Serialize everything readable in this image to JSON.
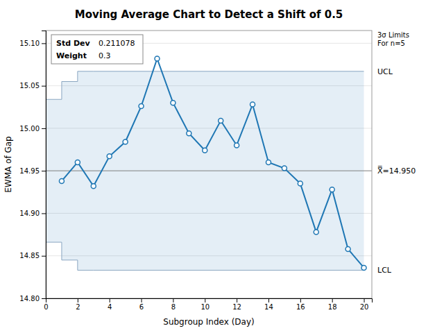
{
  "chart_data": {
    "type": "line",
    "title": "Moving Average Chart to Detect a Shift of 0.5",
    "xlabel": "Subgroup Index (Day)",
    "ylabel": "EWMA of Gap",
    "x": [
      1,
      2,
      3,
      4,
      5,
      6,
      7,
      8,
      9,
      10,
      11,
      12,
      13,
      14,
      15,
      16,
      17,
      18,
      19,
      20
    ],
    "series": [
      {
        "marker": "circle",
        "values": [
          14.938,
          14.96,
          14.932,
          14.967,
          14.984,
          15.026,
          15.082,
          15.03,
          14.994,
          14.974,
          15.009,
          14.98,
          15.028,
          14.96,
          14.953,
          14.935,
          14.878,
          14.928,
          14.858,
          14.836
        ]
      }
    ],
    "limits": [
      {
        "label": "UCL",
        "x": [
          0,
          1,
          2,
          3,
          20
        ],
        "values": [
          15.034,
          15.055,
          15.067,
          15.067,
          15.067
        ]
      },
      {
        "label": "LCL",
        "x": [
          0,
          1,
          2,
          3,
          20
        ],
        "values": [
          14.866,
          14.845,
          14.833,
          14.833,
          14.833
        ]
      }
    ],
    "center_line": {
      "value": 14.95,
      "label": "X̿=14.950"
    },
    "annotations": [
      "3σ Limits\nFor n=5"
    ],
    "inset": [
      {
        "label": "Std Dev",
        "text": "0.211078"
      },
      {
        "label": "Weight",
        "text": "0.3"
      }
    ],
    "xlim": [
      0,
      20.5
    ],
    "ylim": [
      14.8,
      15.115
    ],
    "xticks": [
      0,
      2,
      4,
      6,
      8,
      10,
      12,
      14,
      16,
      18,
      20
    ],
    "yticks": [
      {
        "value": 14.8,
        "label": "14.80"
      },
      14.85,
      {
        "value": 14.9,
        "label": "14.90"
      },
      14.95,
      {
        "value": 15.0,
        "label": "15.00"
      },
      15.05,
      {
        "value": 15.1,
        "label": "15.10"
      }
    ],
    "grid": "y"
  }
}
